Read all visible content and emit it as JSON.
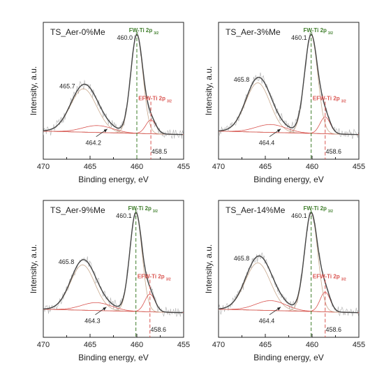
{
  "chart_data": [
    {
      "type": "line",
      "title": "TS_Aer-0%Me",
      "xlabel": "Binding energy, eV",
      "ylabel": "Intensity, a.u.",
      "xlim": [
        470,
        455
      ],
      "x_reversed": true,
      "xticks": [
        "470",
        "465",
        "460",
        "455"
      ],
      "fw_label": "FW-Ti 2p",
      "fw_sub": "3/2",
      "efw_label": "EFW-Ti 2p",
      "efw_sub": "3/2",
      "peaks": [
        {
          "label": "465.7",
          "x": 465.7,
          "height": 0.44,
          "width": 1.4
        },
        {
          "label": "464.2",
          "x": 464.2,
          "height": 0.07,
          "width": 1.6
        },
        {
          "label": "460.0",
          "x": 460.0,
          "height": 1.0,
          "width": 0.65
        },
        {
          "label": "458.5",
          "x": 458.5,
          "height": 0.14,
          "width": 0.55
        }
      ],
      "fw_line_x": 460.0,
      "efw_line_x": 458.5
    },
    {
      "type": "line",
      "title": "TS_Aer-3%Me",
      "xlabel": "Binding energy, eV",
      "ylabel": "Intensity, a.u.",
      "xlim": [
        470,
        455
      ],
      "x_reversed": true,
      "xticks": [
        "470",
        "465",
        "460",
        "455"
      ],
      "fw_label": "FW-Ti 2p",
      "fw_sub": "3/2",
      "efw_label": "EFW-Ti 2p",
      "efw_sub": "3/2",
      "peaks": [
        {
          "label": "465.8",
          "x": 465.8,
          "height": 0.5,
          "width": 1.3
        },
        {
          "label": "464.4",
          "x": 464.4,
          "height": 0.08,
          "width": 1.6
        },
        {
          "label": "460.1",
          "x": 460.1,
          "height": 1.0,
          "width": 0.7
        },
        {
          "label": "458.6",
          "x": 458.6,
          "height": 0.17,
          "width": 0.55
        }
      ],
      "fw_line_x": 460.1,
      "efw_line_x": 458.6
    },
    {
      "type": "line",
      "title": "TS_Aer-9%Me",
      "xlabel": "Binding energy, eV",
      "ylabel": "Intensity, a.u.",
      "xlim": [
        470,
        455
      ],
      "x_reversed": true,
      "xticks": [
        "470",
        "465",
        "460",
        "455"
      ],
      "fw_label": "FW-Ti 2p",
      "fw_sub": "3/2",
      "efw_label": "EFW-Ti 2p",
      "efw_sub": "3/2",
      "peaks": [
        {
          "label": "465.8",
          "x": 465.8,
          "height": 0.46,
          "width": 1.3
        },
        {
          "label": "464.3",
          "x": 464.3,
          "height": 0.08,
          "width": 1.6
        },
        {
          "label": "460.1",
          "x": 460.1,
          "height": 1.0,
          "width": 0.65
        },
        {
          "label": "458.6",
          "x": 458.6,
          "height": 0.18,
          "width": 0.55
        }
      ],
      "fw_line_x": 460.1,
      "efw_line_x": 458.6
    },
    {
      "type": "line",
      "title": "TS_Aer-14%Me",
      "xlabel": "Binding energy, eV",
      "ylabel": "Intensity, a.u.",
      "xlim": [
        470,
        455
      ],
      "x_reversed": true,
      "xticks": [
        "470",
        "465",
        "460",
        "455"
      ],
      "fw_label": "FW-Ti 2p",
      "fw_sub": "3/2",
      "efw_label": "EFW-Ti 2p",
      "efw_sub": "3/2",
      "peaks": [
        {
          "label": "465.8",
          "x": 465.8,
          "height": 0.48,
          "width": 1.35
        },
        {
          "label": "464.4",
          "x": 464.4,
          "height": 0.1,
          "width": 1.6
        },
        {
          "label": "460.1",
          "x": 460.1,
          "height": 1.0,
          "width": 0.7
        },
        {
          "label": "458.6",
          "x": 458.6,
          "height": 0.2,
          "width": 0.55
        }
      ],
      "fw_line_x": 460.1,
      "efw_line_x": 458.6
    }
  ],
  "colors": {
    "envelope": "#444444",
    "fit": "#c8a98e",
    "efw": "#d9534f",
    "fw": "#3e7d2a",
    "raw": "#b0b0b0",
    "axis": "#222222"
  }
}
